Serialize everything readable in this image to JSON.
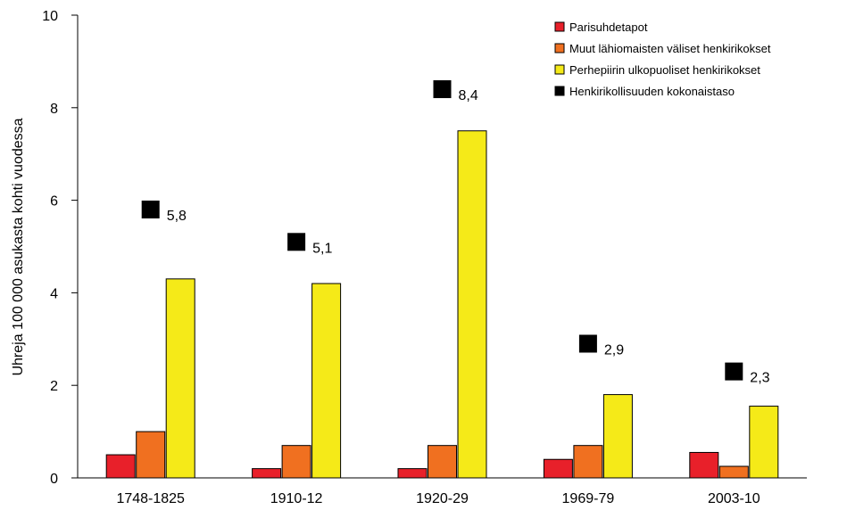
{
  "chart_data": {
    "type": "bar",
    "title": "",
    "ylabel": "Uhreja 100 000 asukasta kohti vuodessa",
    "xlabel": "",
    "ylim": [
      0,
      10
    ],
    "yticks": [
      0,
      2,
      4,
      6,
      8,
      10
    ],
    "categories": [
      "1748-1825",
      "1910-12",
      "1920-29",
      "1969-79",
      "2003-10"
    ],
    "series": [
      {
        "name": "Parisuhdetapot",
        "color": "#e8202a",
        "values": [
          0.5,
          0.2,
          0.2,
          0.4,
          0.55
        ]
      },
      {
        "name": "Muut lähiomaisten väliset henkirikokset",
        "color": "#f07020",
        "values": [
          1.0,
          0.7,
          0.7,
          0.7,
          0.25
        ]
      },
      {
        "name": "Perhepiirin ulkopuoliset henkirikokset",
        "color": "#f5ea18",
        "values": [
          4.3,
          4.2,
          7.5,
          1.8,
          1.55
        ]
      }
    ],
    "total": {
      "name": "Henkirikollisuuden kokonaistaso",
      "color": "#000000",
      "values": [
        5.8,
        5.1,
        8.4,
        2.9,
        2.3
      ],
      "labels": [
        "5,8",
        "5,1",
        "8,4",
        "2,9",
        "2,3"
      ]
    },
    "grid": false,
    "legend_position": "top-right"
  }
}
